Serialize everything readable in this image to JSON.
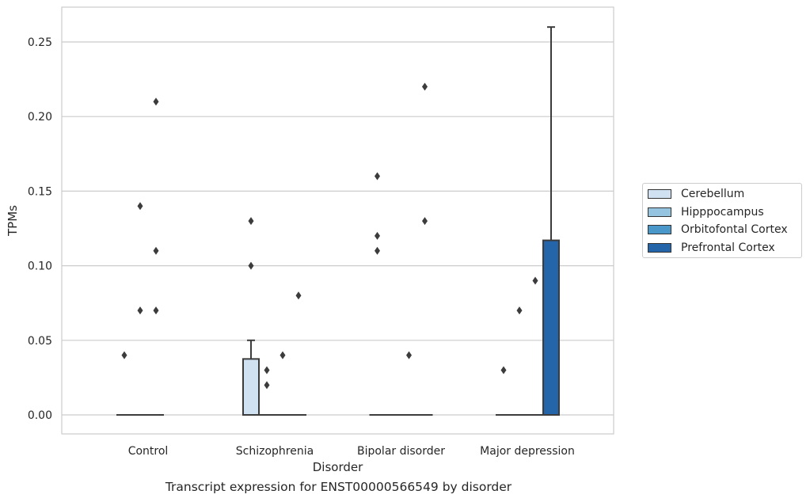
{
  "chart_data": {
    "type": "box",
    "title": "Transcript expression for ENST00000566549 by disorder",
    "xlabel": "Disorder",
    "ylabel": "TPMs",
    "ylim": [
      -0.013,
      0.274
    ],
    "yticks": [
      "0.00",
      "0.05",
      "0.10",
      "0.15",
      "0.20",
      "0.25"
    ],
    "categories": [
      "Control",
      "Schizophrenia",
      "Bipolar disorder",
      "Major depression"
    ],
    "grid": "horizontal",
    "legend_position": "right",
    "series": [
      {
        "name": "Cerebellum",
        "color": "#d0e1f2",
        "boxes": [
          {
            "q1": 0,
            "median": 0,
            "q3": 0,
            "whislo": 0,
            "whishi": 0,
            "fliers": [
              0.04
            ]
          },
          {
            "q1": 0,
            "median": 0,
            "q3": 0.0375,
            "whislo": 0,
            "whishi": 0.05,
            "fliers": [
              0.1,
              0.13
            ]
          },
          {
            "q1": 0,
            "median": 0,
            "q3": 0,
            "whislo": 0,
            "whishi": 0,
            "fliers": [
              0.11,
              0.12,
              0.16
            ]
          },
          {
            "q1": 0,
            "median": 0,
            "q3": 0,
            "whislo": 0,
            "whishi": 0,
            "fliers": [
              0.03
            ]
          }
        ]
      },
      {
        "name": "Hipppocampus",
        "color": "#94c4df",
        "boxes": [
          {
            "q1": 0,
            "median": 0,
            "q3": 0,
            "whislo": 0,
            "whishi": 0,
            "fliers": [
              0.07,
              0.14
            ]
          },
          {
            "q1": 0,
            "median": 0,
            "q3": 0,
            "whislo": 0,
            "whishi": 0,
            "fliers": [
              0.02,
              0.03
            ]
          },
          {
            "q1": 0,
            "median": 0,
            "q3": 0,
            "whislo": 0,
            "whishi": 0,
            "fliers": []
          },
          {
            "q1": 0,
            "median": 0,
            "q3": 0,
            "whislo": 0,
            "whishi": 0,
            "fliers": [
              0.07
            ]
          }
        ]
      },
      {
        "name": "Orbitofontal Cortex",
        "color": "#4a98c9",
        "boxes": [
          {
            "q1": 0,
            "median": 0,
            "q3": 0,
            "whislo": 0,
            "whishi": 0,
            "fliers": [
              0.07,
              0.11,
              0.21
            ]
          },
          {
            "q1": 0,
            "median": 0,
            "q3": 0,
            "whislo": 0,
            "whishi": 0,
            "fliers": [
              0.04
            ]
          },
          {
            "q1": 0,
            "median": 0,
            "q3": 0,
            "whislo": 0,
            "whishi": 0,
            "fliers": [
              0.04
            ]
          },
          {
            "q1": 0,
            "median": 0,
            "q3": 0,
            "whislo": 0,
            "whishi": 0,
            "fliers": [
              0.09
            ]
          }
        ]
      },
      {
        "name": "Prefrontal Cortex",
        "color": "#2464a8",
        "boxes": [
          null,
          {
            "q1": 0,
            "median": 0,
            "q3": 0,
            "whislo": 0,
            "whishi": 0,
            "fliers": [
              0.08
            ]
          },
          {
            "q1": 0,
            "median": 0,
            "q3": 0,
            "whislo": 0,
            "whishi": 0,
            "fliers": [
              0.13,
              0.22
            ]
          },
          {
            "q1": 0,
            "median": 0,
            "q3": 0.117,
            "whislo": 0,
            "whishi": 0.26,
            "fliers": []
          }
        ]
      }
    ]
  }
}
